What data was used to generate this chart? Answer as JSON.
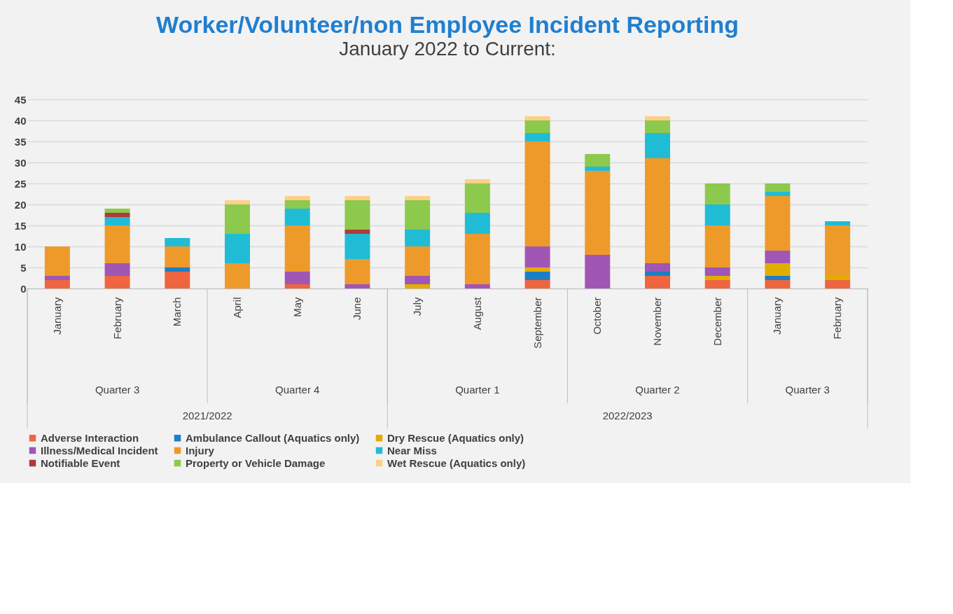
{
  "chart_data": {
    "type": "bar",
    "stacked": true,
    "title": "Worker/Volunteer/non Employee Incident Reporting",
    "subtitle": "January 2022 to Current:",
    "categories": [
      "January",
      "February",
      "March",
      "April",
      "May",
      "June",
      "July",
      "August",
      "September",
      "October",
      "November",
      "December",
      "January",
      "February"
    ],
    "annotations": [
      "Quarter 3",
      "Quarter 4",
      "Quarter 1",
      "Quarter 2",
      "Quarter 3",
      "2021/2022",
      "2022/2023"
    ],
    "series": [
      {
        "name": "Adverse Interaction",
        "color": "#ef6540",
        "values": [
          2,
          3,
          4,
          0,
          1,
          0,
          0,
          0,
          2,
          0,
          3,
          2,
          2,
          2
        ]
      },
      {
        "name": "Ambulance Callout (Aquatics only)",
        "color": "#1b7fc4",
        "values": [
          0,
          0,
          1,
          0,
          0,
          0,
          0,
          0,
          2,
          0,
          1,
          0,
          1,
          0
        ]
      },
      {
        "name": "Dry Rescue (Aquatics only)",
        "color": "#e3ad00",
        "values": [
          0,
          0,
          0,
          0,
          0,
          0,
          1,
          0,
          1,
          0,
          0,
          1,
          3,
          1
        ]
      },
      {
        "name": "Illness/Medical Incident",
        "color": "#a056b4",
        "values": [
          1,
          3,
          0,
          0,
          3,
          1,
          2,
          1,
          5,
          8,
          2,
          2,
          3,
          0
        ]
      },
      {
        "name": "Injury",
        "color": "#ee9a2a",
        "values": [
          7,
          9,
          5,
          6,
          11,
          6,
          7,
          12,
          25,
          20,
          25,
          10,
          13,
          12
        ]
      },
      {
        "name": "Near Miss",
        "color": "#20bcd6",
        "values": [
          0,
          2,
          2,
          7,
          4,
          6,
          4,
          5,
          2,
          1,
          6,
          5,
          1,
          1
        ]
      },
      {
        "name": "Notifiable Event",
        "color": "#b03a3a",
        "values": [
          0,
          1,
          0,
          0,
          0,
          1,
          0,
          0,
          0,
          0,
          0,
          0,
          0,
          0
        ]
      },
      {
        "name": "Property or Vehicle Damage",
        "color": "#8dc94c",
        "values": [
          0,
          1,
          0,
          7,
          2,
          7,
          7,
          7,
          3,
          3,
          3,
          5,
          2,
          0
        ]
      },
      {
        "name": "Wet Rescue (Aquatics only)",
        "color": "#fdd088",
        "values": [
          0,
          0,
          0,
          1,
          1,
          1,
          1,
          1,
          1,
          0,
          1,
          0,
          0,
          0
        ]
      }
    ],
    "ylim": [
      0,
      45
    ],
    "yticks": [
      0,
      5,
      10,
      15,
      20,
      25,
      30,
      35,
      40,
      45
    ],
    "grid": "y",
    "legend": "bottom"
  }
}
